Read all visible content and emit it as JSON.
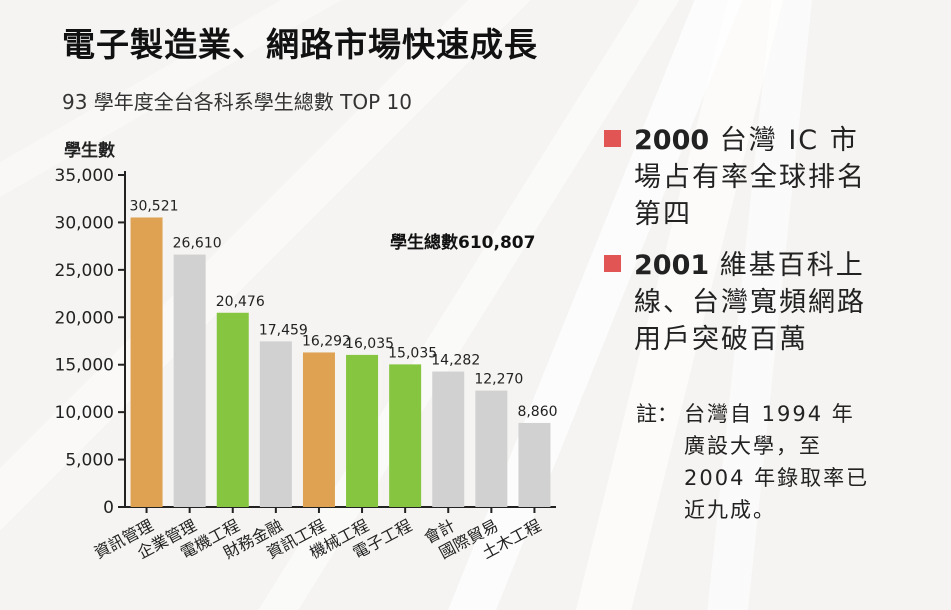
{
  "title": "電子製造業、網路市場快速成長",
  "subtitle": "93 學年度全台各科系學生總數 TOP 10",
  "total_label": "學生總數610,807",
  "facts": [
    {
      "year": "2000",
      "text": " 台灣 IC 市場占有率全球排名第四"
    },
    {
      "year": "2001",
      "text": " 維基百科上線、台灣寬頻網路用戶突破百萬"
    }
  ],
  "note": {
    "prefix": "註：",
    "text": "台灣自 1994 年廣設大學，至 2004 年錄取率已近九成。"
  },
  "colors": {
    "mark": "#e15554",
    "orange": "#dea252",
    "green": "#86c540",
    "gray": "#d1d1d1"
  },
  "chart_data": {
    "type": "bar",
    "ylabel": "學生數",
    "ylim": [
      0,
      35000
    ],
    "yticks": [
      0,
      5000,
      10000,
      15000,
      20000,
      25000,
      30000,
      35000
    ],
    "ytick_labels": [
      "0",
      "5,000",
      "10,000",
      "15,000",
      "20,000",
      "25,000",
      "30,000",
      "35,000"
    ],
    "categories": [
      "資訊管理",
      "企業管理",
      "電機工程",
      "財務金融",
      "資訊工程",
      "機械工程",
      "電子工程",
      "會計",
      "國際貿易",
      "土木工程"
    ],
    "values": [
      30521,
      26610,
      20476,
      17459,
      16292,
      16035,
      15035,
      14282,
      12270,
      8860
    ],
    "value_labels": [
      "30,521",
      "26,610",
      "20,476",
      "17,459",
      "16,292",
      "16,035",
      "15,035",
      "14,282",
      "12,270",
      "8,860"
    ],
    "bar_colors": [
      "orange",
      "gray",
      "green",
      "gray",
      "orange",
      "green",
      "green",
      "gray",
      "gray",
      "gray"
    ],
    "grid": false
  }
}
